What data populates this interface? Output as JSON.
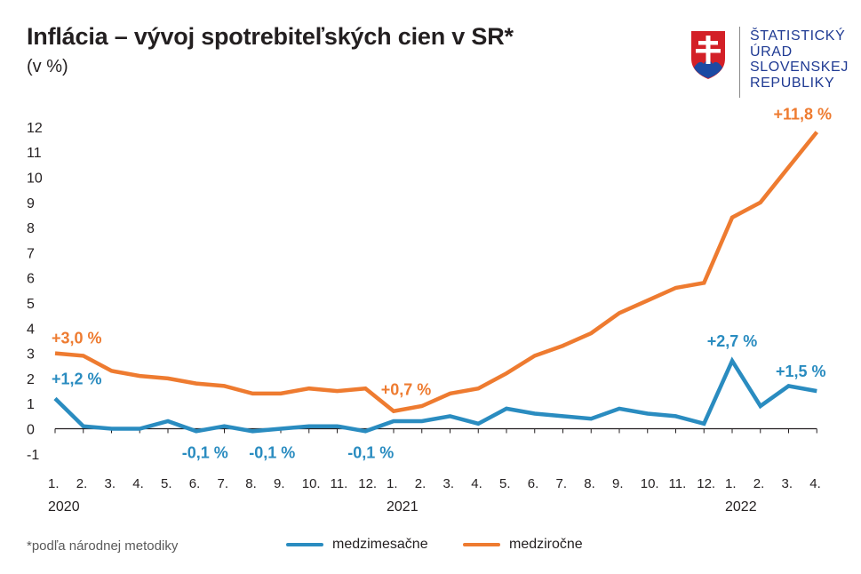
{
  "header": {
    "title": "Inflácia – vývoj spotrebiteľských cien v SR*",
    "subtitle": "(v %)"
  },
  "logo": {
    "lines": [
      "ŠTATISTICKÝ",
      "ÚRAD",
      "SLOVENSKEJ",
      "REPUBLIKY"
    ],
    "icon": "slovak-coat-of-arms-icon"
  },
  "footnote": "*podľa národnej metodiky",
  "colors": {
    "mom": "#2a8cc0",
    "yoy": "#ee7b30",
    "axis": "#231f20"
  },
  "chart_data": {
    "type": "line",
    "title": "Inflácia – vývoj spotrebiteľských cien v SR*",
    "ylabel": "(v %)",
    "ylim": [
      -1,
      12
    ],
    "yticks": [
      12,
      11,
      10,
      9,
      8,
      7,
      6,
      5,
      4,
      3,
      2,
      1,
      0,
      -1
    ],
    "x": [
      "1.",
      "2.",
      "3.",
      "4.",
      "5.",
      "6.",
      "7.",
      "8.",
      "9.",
      "10.",
      "11.",
      "12.",
      "1.",
      "2.",
      "3.",
      "4.",
      "5.",
      "6.",
      "7.",
      "8.",
      "9.",
      "10.",
      "11.",
      "12.",
      "1.",
      "2.",
      "3.",
      "4."
    ],
    "years": [
      {
        "label": "2020",
        "index": 0
      },
      {
        "label": "2021",
        "index": 12
      },
      {
        "label": "2022",
        "index": 24
      }
    ],
    "grid": false,
    "legend": "bottom",
    "series": [
      {
        "name": "medzimesačne",
        "values": [
          1.2,
          0.1,
          0.0,
          0.0,
          0.3,
          -0.1,
          0.1,
          -0.1,
          0.0,
          0.1,
          0.1,
          -0.1,
          0.3,
          0.3,
          0.5,
          0.2,
          0.8,
          0.6,
          0.5,
          0.4,
          0.8,
          0.6,
          0.5,
          0.2,
          2.7,
          0.9,
          1.7,
          1.5
        ],
        "annotations": [
          {
            "index": 0,
            "text": "+1,2 %"
          },
          {
            "index": 5,
            "text": "-0,1 %"
          },
          {
            "index": 7,
            "text": "-0,1 %"
          },
          {
            "index": 11,
            "text": "-0,1 %"
          },
          {
            "index": 24,
            "text": "+2,7 %"
          },
          {
            "index": 27,
            "text": "+1,5 %"
          }
        ]
      },
      {
        "name": "medziročne",
        "values": [
          3.0,
          2.9,
          2.3,
          2.1,
          2.0,
          1.8,
          1.7,
          1.4,
          1.4,
          1.6,
          1.5,
          1.6,
          0.7,
          0.9,
          1.4,
          1.6,
          2.2,
          2.9,
          3.3,
          3.8,
          4.6,
          5.1,
          5.6,
          5.8,
          8.4,
          9.0,
          10.4,
          11.8
        ],
        "annotations": [
          {
            "index": 0,
            "text": "+3,0 %"
          },
          {
            "index": 12,
            "text": "+0,7 %"
          },
          {
            "index": 27,
            "text": "+11,8 %"
          }
        ]
      }
    ]
  }
}
